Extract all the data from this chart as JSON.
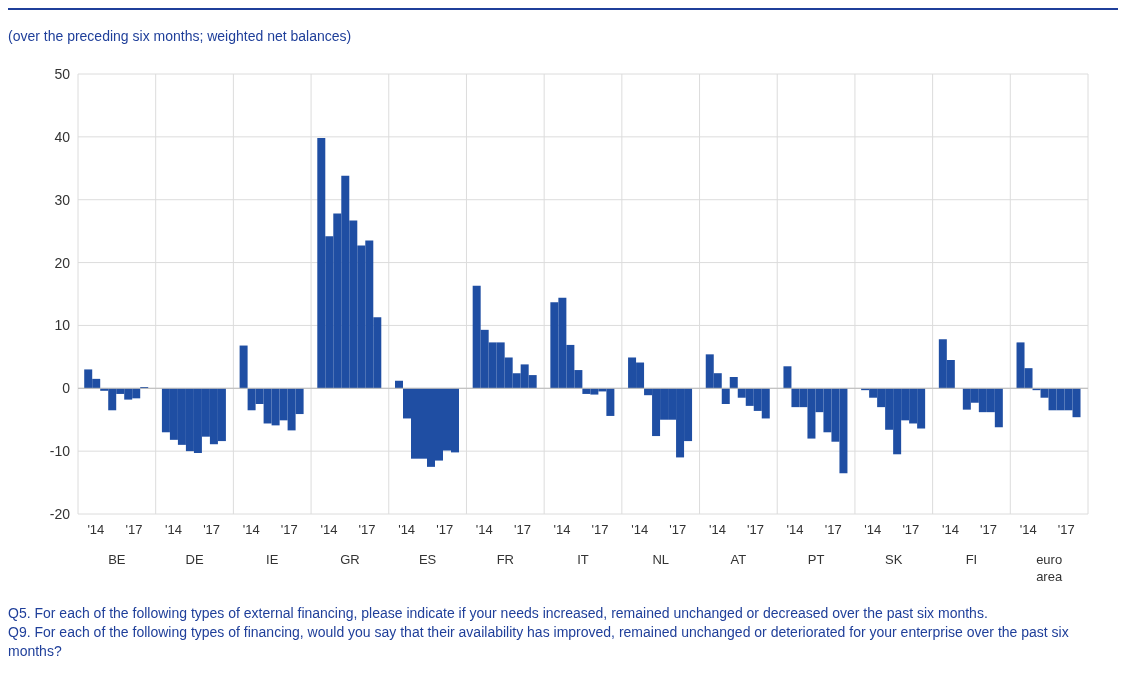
{
  "chart_data": {
    "type": "bar",
    "subtitle": "(over the preceding six months; weighted net balances)",
    "categories": [
      "BE",
      "DE",
      "IE",
      "GR",
      "ES",
      "FR",
      "IT",
      "NL",
      "AT",
      "PT",
      "SK",
      "FI",
      "euro area"
    ],
    "series": [
      {
        "color": "#1f4ea3",
        "values": [
          3.0,
          -7.0,
          6.8,
          39.8,
          1.2,
          16.3,
          13.7,
          4.9,
          5.4,
          3.5,
          -0.3,
          7.8,
          7.3
        ]
      },
      {
        "color": "#1f4ea3",
        "values": [
          1.5,
          -8.2,
          -3.5,
          24.2,
          -4.8,
          9.3,
          14.4,
          4.1,
          2.4,
          -3.0,
          -1.5,
          4.5,
          3.2
        ]
      },
      {
        "color": "#1f4ea3",
        "values": [
          -0.4,
          -9.0,
          -2.5,
          27.8,
          -11.2,
          7.3,
          6.9,
          -1.1,
          -2.5,
          -3.0,
          -3.0,
          0.0,
          -0.3
        ]
      },
      {
        "color": "#1f4ea3",
        "values": [
          -3.5,
          -10.0,
          -5.6,
          33.8,
          -11.2,
          7.3,
          2.9,
          -7.6,
          1.8,
          -8.0,
          -6.6,
          -3.4,
          -1.5
        ]
      },
      {
        "color": "#1f4ea3",
        "values": [
          -0.9,
          -10.3,
          -5.9,
          26.7,
          -12.5,
          4.9,
          -0.9,
          -5.0,
          -1.5,
          -3.8,
          -10.5,
          -2.3,
          -3.5
        ]
      },
      {
        "color": "#1f4ea3",
        "values": [
          -1.8,
          -7.7,
          -5.1,
          22.7,
          -11.5,
          2.4,
          -1.0,
          -5.0,
          -2.8,
          -7.0,
          -5.1,
          -3.8,
          -3.5
        ]
      },
      {
        "color": "#1f4ea3",
        "values": [
          -1.6,
          -8.9,
          -6.7,
          23.5,
          -9.9,
          3.8,
          -0.5,
          -11.0,
          -3.6,
          -8.5,
          -5.6,
          -3.8,
          -3.5
        ]
      },
      {
        "color": "#1f4ea3",
        "values": [
          0.2,
          -8.4,
          -4.1,
          11.3,
          -10.2,
          2.1,
          -4.4,
          -8.4,
          -4.8,
          -13.5,
          -6.4,
          -6.2,
          -4.6
        ]
      }
    ],
    "ylim": [
      -20,
      50
    ],
    "yticks": [
      -20,
      -10,
      0,
      10,
      20,
      30,
      40,
      50
    ],
    "grid": true,
    "annotations": [
      "'14",
      "'17",
      "Q5. For each of the following types of external financing, please indicate if your needs increased, remained unchanged or decreased over the past six months.",
      "Q9. For each of the following types of financing, would you say that their availability has improved, remained unchanged or deteriorated for your enterprise over the past six months?"
    ]
  }
}
